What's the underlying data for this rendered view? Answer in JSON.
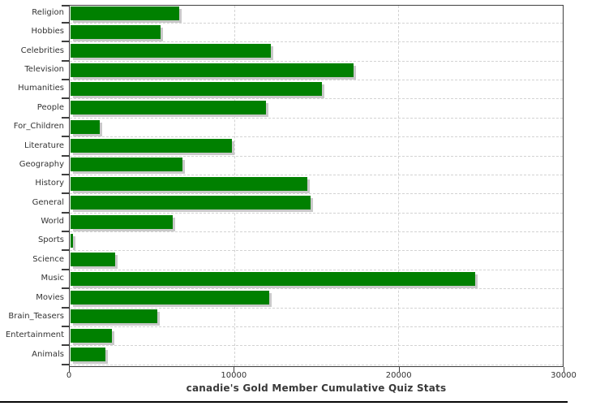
{
  "chart_data": {
    "type": "bar",
    "orientation": "horizontal",
    "title": "canadie's Gold Member Cumulative Quiz Stats",
    "categories": [
      "Religion",
      "Hobbies",
      "Celebrities",
      "Television",
      "Humanities",
      "People",
      "For_Children",
      "Literature",
      "Geography",
      "History",
      "General",
      "World",
      "Sports",
      "Science",
      "Music",
      "Movies",
      "Brain_Teasers",
      "Entertainment",
      "Animals"
    ],
    "values": [
      6600,
      5500,
      12200,
      17200,
      15300,
      11900,
      1800,
      9800,
      6800,
      14400,
      14600,
      6200,
      150,
      2700,
      24600,
      12100,
      5300,
      2500,
      2100
    ],
    "xlim": [
      0,
      30000
    ],
    "x_ticks": [
      0,
      10000,
      20000,
      30000
    ],
    "x_tick_labels": [
      "0",
      "10000",
      "20000",
      "30000"
    ],
    "grid": true,
    "legend": "none",
    "colors": {
      "bar": "#008000",
      "bar_shadow": "#c9c9c9",
      "gridline": "#d3d3d3",
      "axis": "#3f3f3f",
      "text": "#333333",
      "background": "#ffffff",
      "bottom_rule": "#060606"
    }
  }
}
